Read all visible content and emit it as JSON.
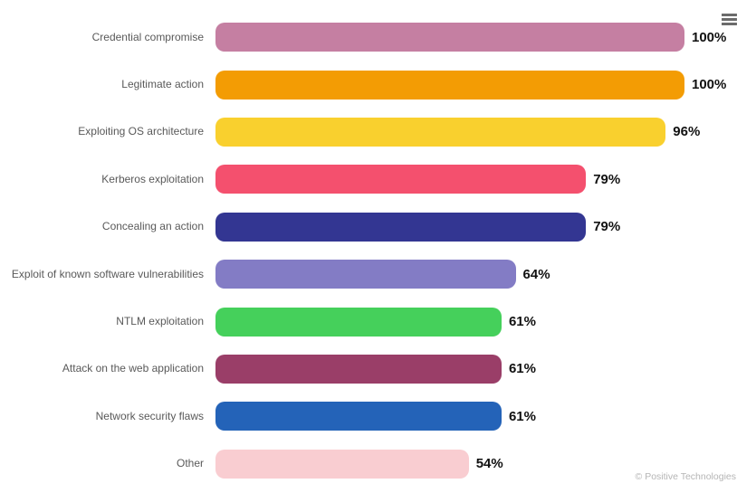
{
  "chart_data": {
    "type": "bar",
    "orientation": "horizontal",
    "title": "",
    "xlabel": "",
    "ylabel": "",
    "xlim": [
      0,
      100
    ],
    "grid": false,
    "legend": false,
    "value_suffix": "%",
    "categories": [
      "Credential compromise",
      "Legitimate action",
      "Exploiting OS architecture",
      "Kerberos exploitation",
      "Concealing an action",
      "Exploit of known software vulnerabilities",
      "NTLM exploitation",
      "Attack on the web application",
      "Network security flaws",
      "Other"
    ],
    "values": [
      100,
      100,
      96,
      79,
      79,
      64,
      61,
      61,
      61,
      54
    ],
    "colors": [
      "#c57fa2",
      "#f39c04",
      "#f9d02e",
      "#f4506e",
      "#333692",
      "#837cc5",
      "#45d05b",
      "#9a3e68",
      "#2463b8",
      "#f9cdd1"
    ]
  },
  "icons": {
    "menu": "hamburger-menu"
  },
  "watermark": "© Positive Technologies"
}
